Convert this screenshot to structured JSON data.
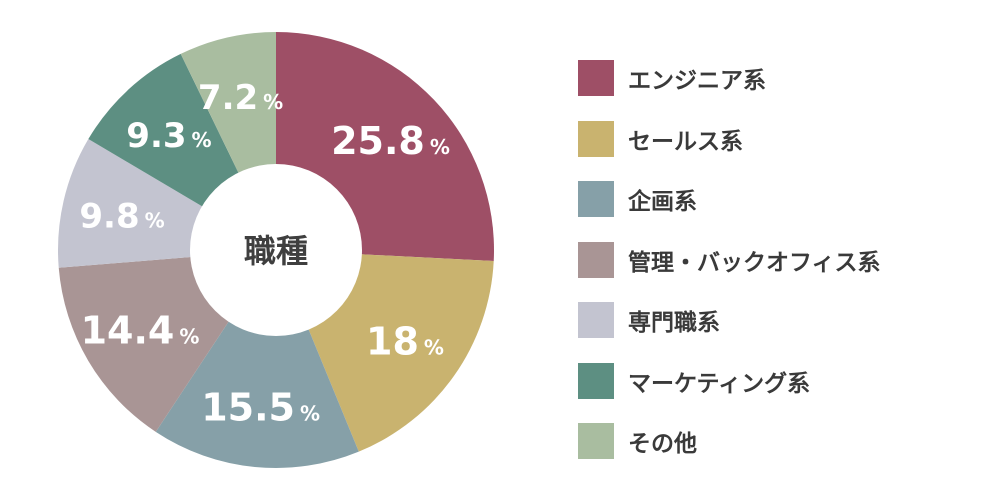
{
  "chart_data": {
    "type": "pie",
    "variant": "donut",
    "center_label": "職種",
    "unit": "%",
    "slices": [
      {
        "label": "エンジニア系",
        "value": 25.8,
        "value_text": "25.8",
        "color": "#9e4f66"
      },
      {
        "label": "セールス系",
        "value": 18,
        "value_text": "18",
        "color": "#c9b36f"
      },
      {
        "label": "企画系",
        "value": 15.5,
        "value_text": "15.5",
        "color": "#86a0a8"
      },
      {
        "label": "管理・バックオフィス系",
        "value": 14.4,
        "value_text": "14.4",
        "color": "#a99595"
      },
      {
        "label": "専門職系",
        "value": 9.8,
        "value_text": "9.8",
        "color": "#c3c4d0"
      },
      {
        "label": "マーケティング系",
        "value": 9.3,
        "value_text": "9.3",
        "color": "#5d8f82"
      },
      {
        "label": "その他",
        "value": 7.2,
        "value_text": "7.2",
        "color": "#a9bda0"
      }
    ],
    "legend_position": "right"
  }
}
